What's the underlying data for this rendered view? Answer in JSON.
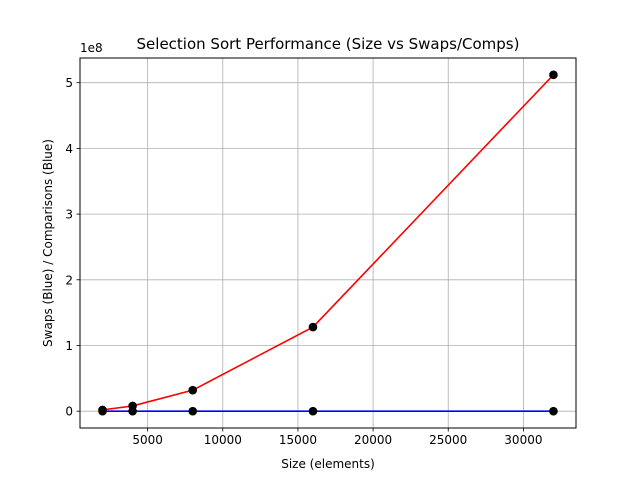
{
  "chart_data": {
    "type": "line",
    "title": "Selection Sort Performance (Size vs Swaps/Comps)",
    "xlabel": "Size (elements)",
    "ylabel": "Swaps (Blue) / Comparisons (Blue)",
    "y_offset_label": "1e8",
    "y_scale": 100000000,
    "xlim": [
      500,
      33500
    ],
    "ylim": [
      -25600000,
      537600000
    ],
    "x_ticks": [
      5000,
      10000,
      15000,
      20000,
      25000,
      30000
    ],
    "x_tick_labels": [
      "5000",
      "10000",
      "15000",
      "20000",
      "25000",
      "30000"
    ],
    "y_ticks": [
      0,
      100000000,
      200000000,
      300000000,
      400000000,
      500000000
    ],
    "y_tick_labels": [
      "0",
      "1",
      "2",
      "3",
      "4",
      "5"
    ],
    "grid": true,
    "marker_color": "#000000",
    "series": [
      {
        "color": "#ff0000",
        "x": [
          2000,
          4000,
          8000,
          16000,
          32000
        ],
        "values": [
          2000000,
          8000000,
          32000000,
          128000000,
          512000000
        ]
      },
      {
        "color": "#0000ff",
        "x": [
          2000,
          4000,
          8000,
          16000,
          32000
        ],
        "values": [
          2000,
          4000,
          8000,
          16000,
          32000
        ]
      }
    ]
  }
}
